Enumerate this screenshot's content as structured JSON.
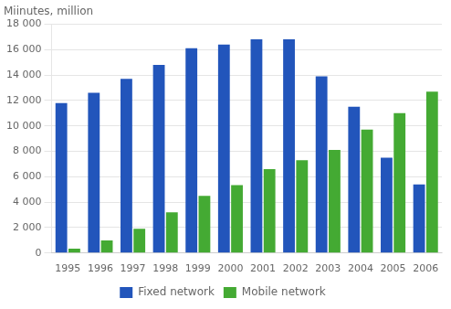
{
  "chart_data": {
    "type": "bar",
    "ylabel": "Miinutes, million",
    "categories": [
      "1995",
      "1996",
      "1997",
      "1998",
      "1999",
      "2000",
      "2001",
      "2002",
      "2003",
      "2004",
      "2005",
      "2006"
    ],
    "series": [
      {
        "name": "Fixed network",
        "color": "#2255bb",
        "values": [
          11800,
          12600,
          13700,
          14800,
          16100,
          16400,
          16800,
          16800,
          13900,
          11500,
          7500,
          5400
        ]
      },
      {
        "name": "Mobile network",
        "color": "#44aa33",
        "values": [
          350,
          1000,
          1900,
          3200,
          4500,
          5350,
          6600,
          7300,
          8100,
          9700,
          11000,
          12700
        ]
      }
    ],
    "ylim": [
      0,
      18000
    ],
    "yticks": [
      0,
      {
        "value": 2000,
        "label": "2 000"
      },
      {
        "value": 4000,
        "label": "4 000"
      },
      {
        "value": 6000,
        "label": "6 000"
      },
      {
        "value": 8000,
        "label": "8 000"
      },
      {
        "value": 10000,
        "label": "10 000"
      },
      {
        "value": 12000,
        "label": "12 000"
      },
      {
        "value": 14000,
        "label": "14 000"
      },
      {
        "value": 16000,
        "label": "16 000"
      },
      {
        "value": 18000,
        "label": "18 000"
      }
    ],
    "grid": true,
    "legend": "bottom"
  }
}
